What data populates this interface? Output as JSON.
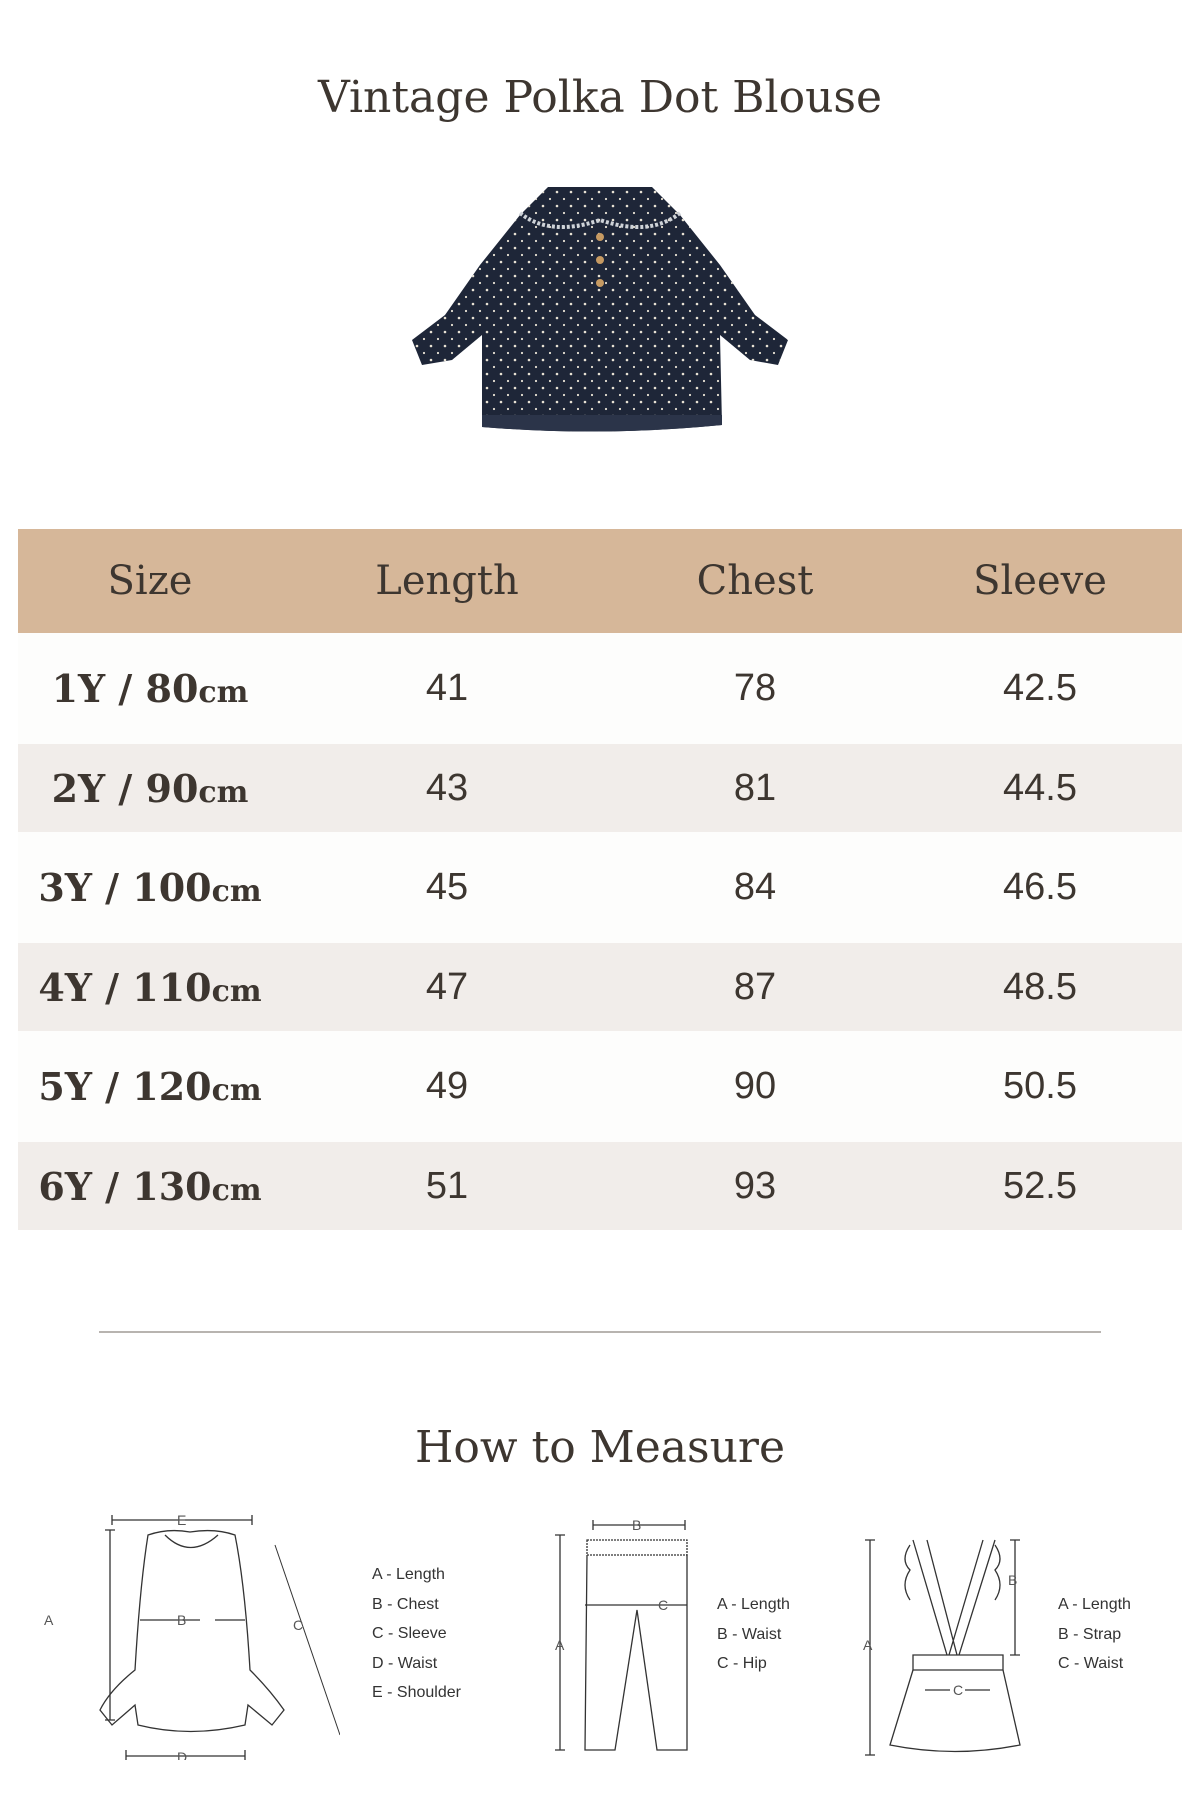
{
  "title": "Vintage Polka Dot Blouse",
  "product_image": {
    "icon": "navy-polka-dot-blouse",
    "color": "#1e2638"
  },
  "table": {
    "header_color": "#d6b799",
    "headers": [
      "Size",
      "Length",
      "Chest",
      "Sleeve"
    ],
    "rows": [
      {
        "size": "1Y / 80",
        "unit": "cm",
        "length": "41",
        "chest": "78",
        "sleeve": "42.5"
      },
      {
        "size": "2Y / 90",
        "unit": "cm",
        "length": "43",
        "chest": "81",
        "sleeve": "44.5"
      },
      {
        "size": "3Y / 100",
        "unit": "cm",
        "length": "45",
        "chest": "84",
        "sleeve": "46.5"
      },
      {
        "size": "4Y / 110",
        "unit": "cm",
        "length": "47",
        "chest": "87",
        "sleeve": "48.5"
      },
      {
        "size": "5Y / 120",
        "unit": "cm",
        "length": "49",
        "chest": "90",
        "sleeve": "50.5"
      },
      {
        "size": "6Y / 130",
        "unit": "cm",
        "length": "51",
        "chest": "93",
        "sleeve": "52.5"
      }
    ]
  },
  "measure": {
    "title": "How to Measure",
    "diagrams": [
      {
        "icon": "sweatshirt-diagram",
        "labels": [
          "A",
          "B",
          "C",
          "D",
          "E"
        ],
        "legend": [
          "A - Length",
          "B - Chest",
          "C - Sleeve",
          "D - Waist",
          "E - Shoulder"
        ]
      },
      {
        "icon": "pants-diagram",
        "labels": [
          "A",
          "B",
          "C"
        ],
        "legend": [
          "A - Length",
          "B - Waist",
          "C - Hip"
        ]
      },
      {
        "icon": "suspender-skirt-diagram",
        "labels": [
          "A",
          "B",
          "C"
        ],
        "legend": [
          "A - Length",
          "B - Strap",
          "C - Waist"
        ]
      }
    ]
  }
}
